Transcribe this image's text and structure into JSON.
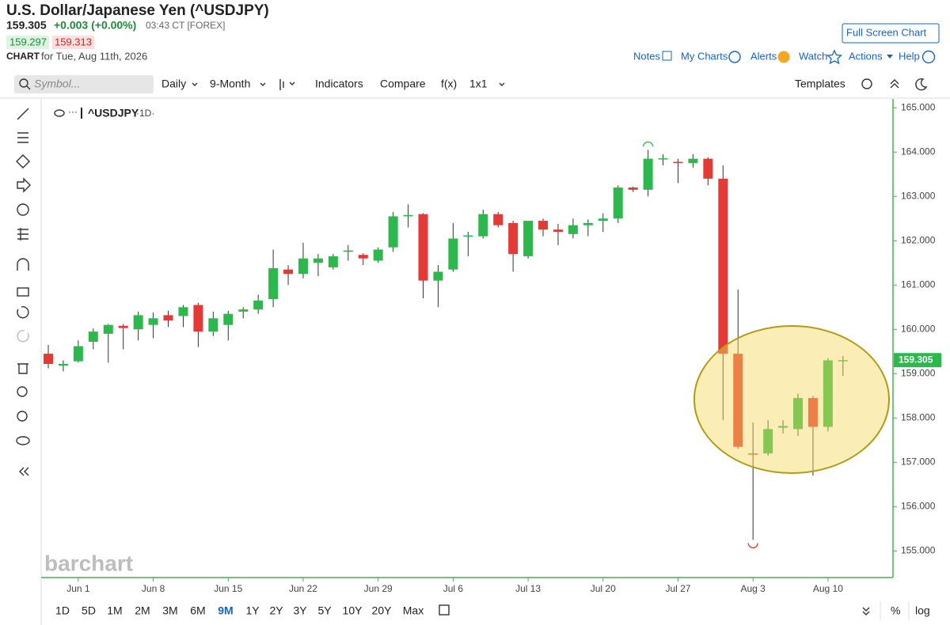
{
  "header": {
    "title": "U.S. Dollar/Japanese Yen (^USDJPY)",
    "price": "159.305",
    "change": "+0.003 (+0.00%)",
    "time": "03:43 CT [FOREX]",
    "bid": "159.297",
    "ask": "159.313",
    "chart_label": "CHART",
    "date": "for Tue, Aug 11th, 2026",
    "full_screen": "Full Screen Chart"
  },
  "links": [
    "Notes",
    "My Charts",
    "Alerts",
    "Watch",
    "Actions",
    "Help"
  ],
  "toolbar": {
    "search_placeholder": "Symbol...",
    "items": [
      "Daily",
      "9-Month",
      "Indicators",
      "Compare",
      "f(x)",
      "1x1"
    ],
    "templates": "Templates"
  },
  "chart_data": {
    "type": "candlestick",
    "title": "^USDJPY",
    "interval": "·1D·",
    "watermark": "barchart",
    "categories": [
      null,
      null,
      "Jun 1",
      null,
      null,
      null,
      null,
      "Jun 8",
      null,
      null,
      null,
      null,
      "Jun 15",
      null,
      null,
      null,
      null,
      "Jun 22",
      null,
      null,
      null,
      null,
      "Jun 29",
      null,
      null,
      null,
      null,
      "Jul 6",
      null,
      null,
      null,
      null,
      "Jul 13",
      null,
      null,
      null,
      null,
      "Jul 20",
      null,
      null,
      null,
      null,
      "Jul 27",
      null,
      null,
      null,
      null,
      "Aug 3",
      null,
      null,
      null,
      null,
      "Aug 10",
      null
    ],
    "open": [
      159.45,
      159.18,
      159.28,
      159.72,
      159.9,
      160.08,
      160.0,
      160.1,
      160.32,
      160.3,
      160.55,
      159.95,
      160.1,
      160.4,
      160.45,
      160.68,
      161.35,
      161.25,
      161.5,
      161.4,
      161.75,
      161.68,
      161.55,
      161.85,
      162.55,
      162.6,
      161.1,
      161.35,
      162.1,
      162.1,
      162.6,
      162.4,
      161.65,
      162.45,
      162.25,
      162.15,
      162.35,
      162.45,
      162.5,
      163.2,
      163.15,
      163.85,
      163.78,
      163.75,
      163.85,
      163.4,
      159.45,
      157.2,
      157.2,
      157.78,
      157.75,
      158.45,
      157.8,
      159.29
    ],
    "high": [
      159.65,
      159.3,
      159.75,
      160.02,
      160.12,
      160.12,
      160.4,
      160.38,
      160.42,
      160.55,
      160.6,
      160.4,
      160.42,
      160.5,
      160.78,
      161.8,
      161.45,
      161.95,
      161.7,
      161.7,
      161.9,
      161.72,
      161.85,
      162.65,
      162.82,
      162.62,
      161.45,
      162.4,
      162.2,
      162.7,
      162.65,
      162.45,
      162.45,
      162.5,
      162.38,
      162.5,
      162.48,
      162.62,
      163.25,
      163.22,
      164.05,
      163.95,
      163.85,
      163.95,
      163.88,
      163.7,
      160.9,
      157.9,
      157.95,
      157.95,
      158.55,
      158.5,
      159.35,
      159.4
    ],
    "low": [
      159.12,
      159.05,
      159.25,
      159.55,
      159.25,
      159.55,
      159.75,
      159.8,
      160.05,
      160.05,
      159.6,
      159.85,
      159.75,
      160.25,
      160.35,
      160.5,
      161.0,
      161.15,
      161.2,
      161.35,
      161.55,
      161.45,
      161.5,
      161.75,
      162.3,
      160.7,
      160.5,
      161.3,
      161.65,
      162.05,
      162.3,
      161.3,
      161.6,
      162.1,
      161.9,
      162.05,
      162.1,
      162.2,
      162.4,
      163.1,
      163.0,
      163.7,
      163.3,
      163.65,
      163.25,
      157.95,
      157.3,
      155.25,
      157.15,
      157.65,
      157.6,
      156.7,
      157.7,
      158.95
    ],
    "close": [
      159.22,
      159.22,
      159.62,
      159.95,
      160.1,
      160.03,
      160.32,
      160.25,
      160.2,
      160.5,
      159.95,
      160.25,
      160.35,
      160.45,
      160.65,
      161.38,
      161.25,
      161.6,
      161.6,
      161.65,
      161.78,
      161.6,
      161.8,
      162.55,
      162.58,
      161.1,
      161.3,
      162.05,
      162.12,
      162.6,
      162.35,
      161.7,
      162.45,
      162.25,
      162.2,
      162.35,
      162.4,
      162.5,
      163.2,
      163.15,
      163.85,
      163.86,
      163.75,
      163.85,
      163.4,
      159.45,
      157.35,
      157.18,
      157.75,
      157.82,
      158.45,
      157.8,
      159.3,
      159.305
    ],
    "last_price": {
      "value": 159.305,
      "label": "159.305"
    },
    "ylim": [
      154.4,
      165.2
    ],
    "yticks": [
      {
        "value": 155,
        "label": "155.000"
      },
      {
        "value": 156,
        "label": "156.000"
      },
      {
        "value": 157,
        "label": "157.000"
      },
      {
        "value": 158,
        "label": "158.000"
      },
      {
        "value": 159,
        "label": "159.000"
      },
      {
        "value": 160,
        "label": "160.000"
      },
      {
        "value": 161,
        "label": "161.000"
      },
      {
        "value": 162,
        "label": "162.000"
      },
      {
        "value": 163,
        "label": "163.000"
      },
      {
        "value": 164,
        "label": "164.000"
      },
      {
        "value": 165,
        "label": "165.000"
      }
    ],
    "up_color": "#2db84d",
    "down_color": "#e53935",
    "grid": false
  },
  "range_bar": {
    "ranges": [
      "1D",
      "5D",
      "1M",
      "2M",
      "3M",
      "6M",
      "9M",
      "1Y",
      "2Y",
      "3Y",
      "5Y",
      "10Y",
      "20Y",
      "Max"
    ],
    "active": "9M",
    "percent": "%",
    "log": "log"
  }
}
